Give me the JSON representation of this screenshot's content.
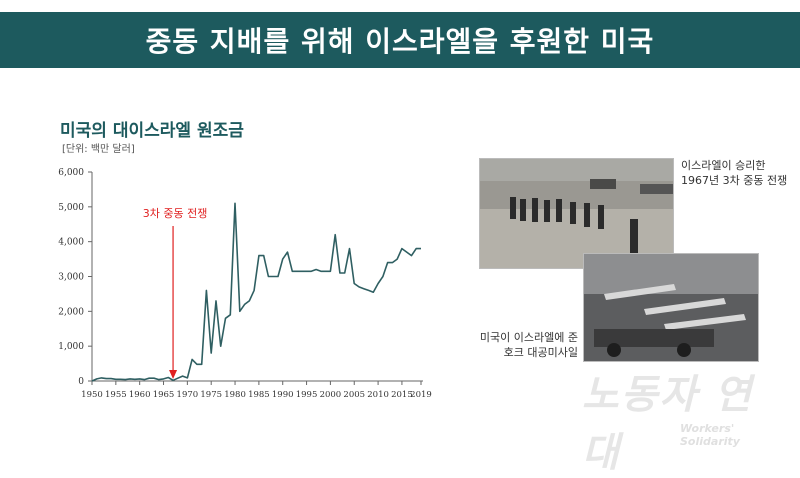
{
  "header": {
    "title": "중동 지배를 위해 이스라엘을 후원한 미국"
  },
  "chart_header": {
    "title": "미국의 대이스라엘 원조금",
    "unit": "[단위: 백만 달러]"
  },
  "photos": [
    {
      "caption_line1": "이스라엘이 승리한",
      "caption_line2": "1967년 3차 중동 전쟁",
      "icon": "war-photo-icon"
    },
    {
      "caption_line1": "미국이 이스라엘에 준",
      "caption_line2": "호크 대공미사일",
      "icon": "missile-photo-icon"
    }
  ],
  "watermark": {
    "text_ko": "노동자 연대",
    "text_en": "Workers' Solidarity"
  },
  "colors": {
    "banner": "#1d5a5e",
    "title": "#1d5a5e",
    "line": "#2f5f62",
    "annotation": "#e02020"
  },
  "chart_data": {
    "type": "line",
    "title": "미국의 대이스라엘 원조금",
    "ylabel": "[단위: 백만 달러]",
    "xlim": [
      1950,
      2019
    ],
    "ylim": [
      0,
      6000
    ],
    "yticks": [
      0,
      1000,
      2000,
      3000,
      4000,
      5000,
      6000
    ],
    "ytick_labels": [
      "0",
      "1,000",
      "2,000",
      "3,000",
      "4,000",
      "5,000",
      "6,000"
    ],
    "xticks": [
      1950,
      1955,
      1960,
      1965,
      1970,
      1975,
      1980,
      1985,
      1990,
      1995,
      2000,
      2005,
      2010,
      2015,
      2019
    ],
    "annotation": {
      "text": "3차 중동 전쟁",
      "x": 1967
    },
    "series": [
      {
        "x": [
          1950,
          1951,
          1952,
          1953,
          1954,
          1955,
          1956,
          1957,
          1958,
          1959,
          1960,
          1961,
          1962,
          1963,
          1964,
          1965,
          1966,
          1967,
          1968,
          1969,
          1970,
          1971,
          1972,
          1973,
          1974,
          1975,
          1976,
          1977,
          1978,
          1979,
          1980,
          1981,
          1982,
          1983,
          1984,
          1985,
          1986,
          1987,
          1988,
          1989,
          1990,
          1991,
          1992,
          1993,
          1994,
          1995,
          1996,
          1997,
          1998,
          1999,
          2000,
          2001,
          2002,
          2003,
          2004,
          2005,
          2006,
          2007,
          2008,
          2009,
          2010,
          2011,
          2012,
          2013,
          2014,
          2015,
          2016,
          2017,
          2018,
          2019
        ],
        "values": [
          0,
          60,
          90,
          70,
          70,
          50,
          50,
          40,
          60,
          50,
          60,
          40,
          80,
          80,
          40,
          60,
          100,
          20,
          80,
          140,
          90,
          620,
          480,
          480,
          2600,
          800,
          2300,
          1000,
          1800,
          1900,
          5100,
          2000,
          2200,
          2300,
          2600,
          3600,
          3600,
          3000,
          3000,
          3000,
          3500,
          3700,
          3150,
          3150,
          3150,
          3150,
          3150,
          3200,
          3150,
          3150,
          3150,
          4200,
          3100,
          3100,
          3800,
          2800,
          2700,
          2650,
          2600,
          2550,
          2800,
          3000,
          3400,
          3400,
          3500,
          3800,
          3700,
          3600,
          3800,
          3800
        ]
      }
    ]
  }
}
